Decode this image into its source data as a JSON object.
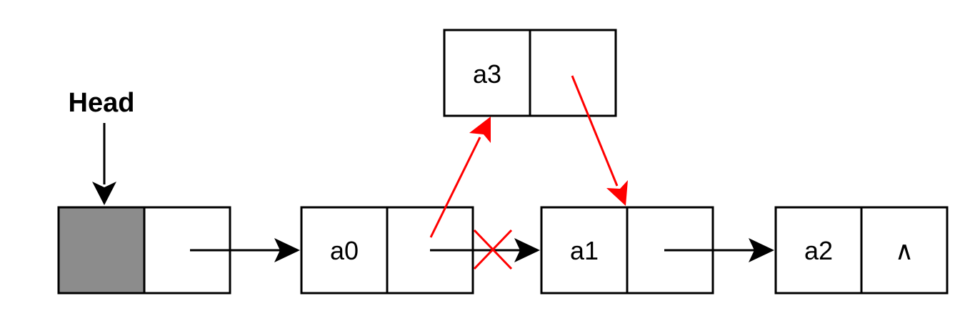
{
  "head": {
    "label": "Head"
  },
  "nodes": {
    "a0": {
      "data": "a0"
    },
    "a1": {
      "data": "a1"
    },
    "a2": {
      "data": "a2",
      "next": "∧"
    },
    "a3": {
      "data": "a3"
    }
  },
  "colors": {
    "link": "#000000",
    "new_link": "#ff0000",
    "head_node_fill": "#8c8c8c",
    "removed_link_mark": "#ff0000"
  },
  "edges": [
    {
      "from": "head",
      "to": "a0",
      "kind": "existing"
    },
    {
      "from": "a0",
      "to": "a1",
      "kind": "removed"
    },
    {
      "from": "a0",
      "to": "a3",
      "kind": "new"
    },
    {
      "from": "a3",
      "to": "a1",
      "kind": "new"
    },
    {
      "from": "a1",
      "to": "a2",
      "kind": "existing"
    }
  ]
}
